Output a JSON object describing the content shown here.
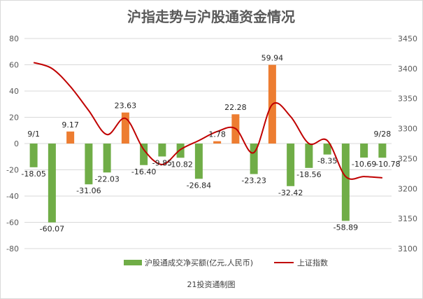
{
  "chart_data": {
    "type": "bar",
    "title": "沪指走势与沪股通资金情况",
    "source": "21投资通制图",
    "colors": {
      "positive": "#ED7D31",
      "negative": "#70AD47",
      "line": "#C00000",
      "grid": "#D9D9D9"
    },
    "left_axis": {
      "ylim": [
        -80,
        80
      ],
      "ticks": [
        "-80",
        "-60",
        "-40",
        "-20",
        "0",
        "20",
        "40",
        "60",
        "80"
      ]
    },
    "right_axis": {
      "ylim": [
        3100,
        3450
      ],
      "ticks": [
        "3100",
        "3150",
        "3200",
        "3250",
        "3300",
        "3350",
        "3400",
        "3450"
      ]
    },
    "grid": true,
    "legend_position": "bottom",
    "date_labels": [
      {
        "text": "9/1",
        "index": 0
      },
      {
        "text": "9/28",
        "index": 19
      }
    ],
    "series": [
      {
        "name": "沪股通成交净买额(亿元,人民币)",
        "type": "bar",
        "axis": "left",
        "values": [
          -18.05,
          -60.07,
          9.17,
          -31.06,
          -22.03,
          23.63,
          -16.4,
          -9.85,
          -10.82,
          -26.84,
          1.78,
          22.28,
          -23.23,
          59.94,
          -32.42,
          -18.56,
          -8.35,
          -58.89,
          -10.69,
          -10.78
        ],
        "labels": [
          "-18.05",
          "-60.07",
          "9.17",
          "-31.06",
          "-22.03",
          "23.63",
          "-16.40",
          "-9.85",
          "-10.82",
          "-26.84",
          "1.78",
          "22.28",
          "-23.23",
          "59.94",
          "-32.42",
          "-18.56",
          "-8.35",
          "-58.89",
          "-10.69",
          "-10.78"
        ]
      },
      {
        "name": "上证指数",
        "type": "line",
        "axis": "right",
        "values": [
          3410,
          3400,
          3370,
          3330,
          3290,
          3317,
          3265,
          3240,
          3265,
          3280,
          3295,
          3300,
          3260,
          3340,
          3320,
          3275,
          3280,
          3220,
          3220,
          3218
        ]
      }
    ]
  }
}
